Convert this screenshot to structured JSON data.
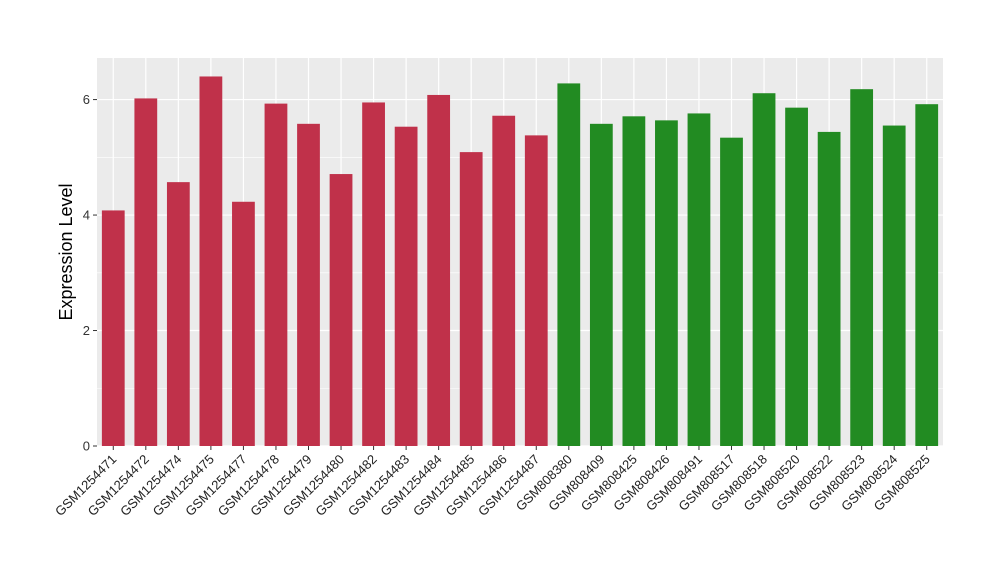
{
  "chart_data": {
    "type": "bar",
    "ylabel": "Expression Level",
    "xlabel": "",
    "ylim": [
      0,
      6.72
    ],
    "yticks": [
      0,
      2,
      4,
      6
    ],
    "grid": true,
    "categories": [
      "GSM1254471",
      "GSM1254472",
      "GSM1254474",
      "GSM1254475",
      "GSM1254477",
      "GSM1254478",
      "GSM1254479",
      "GSM1254480",
      "GSM1254482",
      "GSM1254483",
      "GSM1254484",
      "GSM1254485",
      "GSM1254486",
      "GSM1254487",
      "GSM808380",
      "GSM808409",
      "GSM808425",
      "GSM808426",
      "GSM808491",
      "GSM808517",
      "GSM808518",
      "GSM808520",
      "GSM808522",
      "GSM808523",
      "GSM808524",
      "GSM808525"
    ],
    "values": [
      4.08,
      6.02,
      4.57,
      6.4,
      4.23,
      5.93,
      5.58,
      4.71,
      5.95,
      5.53,
      6.08,
      5.09,
      5.72,
      5.38,
      6.28,
      5.58,
      5.71,
      5.64,
      5.76,
      5.34,
      6.11,
      5.86,
      5.44,
      6.18,
      5.55,
      5.92
    ],
    "bar_colors": [
      "#C0314A",
      "#C0314A",
      "#C0314A",
      "#C0314A",
      "#C0314A",
      "#C0314A",
      "#C0314A",
      "#C0314A",
      "#C0314A",
      "#C0314A",
      "#C0314A",
      "#C0314A",
      "#C0314A",
      "#C0314A",
      "#228B22",
      "#228B22",
      "#228B22",
      "#228B22",
      "#228B22",
      "#228B22",
      "#228B22",
      "#228B22",
      "#228B22",
      "#228B22",
      "#228B22",
      "#228B22"
    ],
    "panel_background": "#EBEBEB",
    "gridline_color": "#FFFFFF"
  }
}
